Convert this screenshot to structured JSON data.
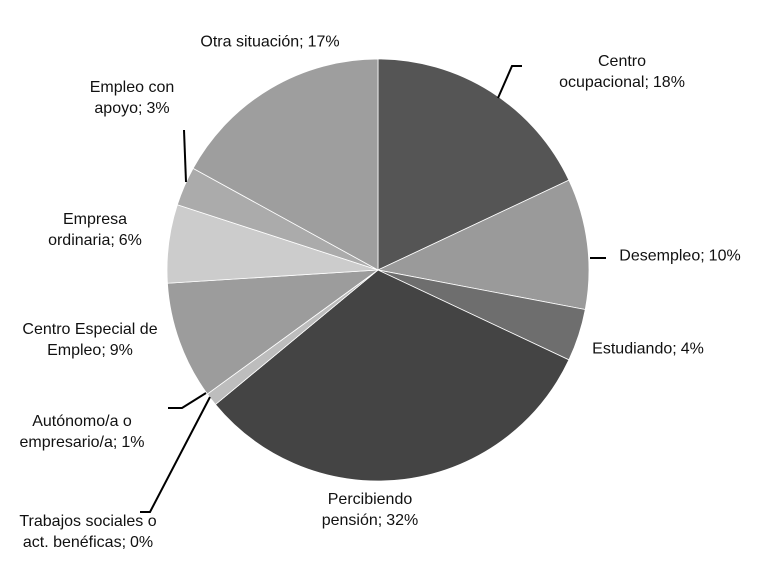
{
  "chart_data": {
    "type": "pie",
    "categories": [
      "Centro ocupacional;",
      "Desempleo;",
      "Estudiando;",
      "Percibiendo pensión;",
      "Trabajos sociales o act. benéficas;",
      "Autónomo/a o empresario/a;",
      "Centro Especial de Empleo;",
      "Empresa ordinaria;",
      "Empleo con apoyo;",
      "Otra situación;"
    ],
    "values": [
      18,
      10,
      4,
      32,
      0,
      1,
      9,
      6,
      3,
      17
    ],
    "value_labels": [
      "18%",
      "10%",
      "4%",
      "32%",
      "0%",
      "1%",
      "9%",
      "6%",
      "3%",
      "17%"
    ],
    "colors": [
      "#555555",
      "#9a9a9a",
      "#6e6e6e",
      "#444444",
      "#8a8a8a",
      "#bdbdbd",
      "#9c9c9c",
      "#cccccc",
      "#ababab",
      "#9e9e9e"
    ]
  }
}
